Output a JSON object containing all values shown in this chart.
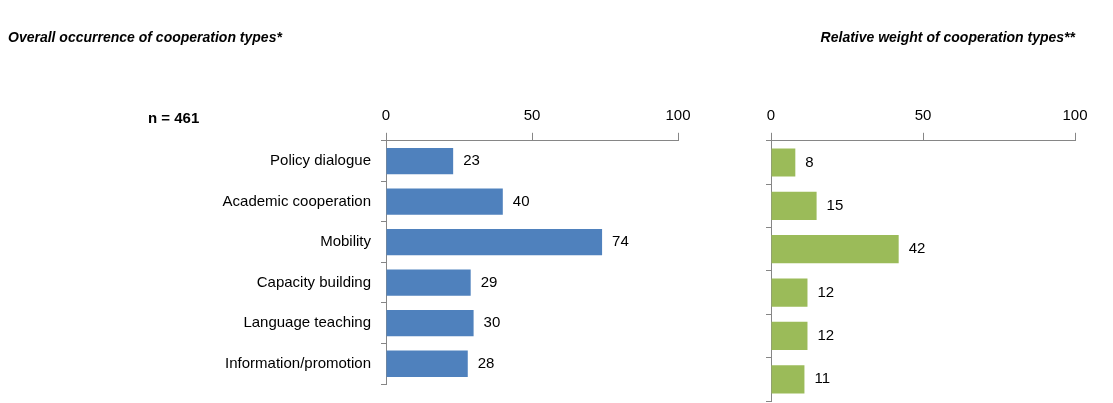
{
  "chart_data": [
    {
      "type": "bar",
      "orientation": "horizontal",
      "title": "Overall occurrence of cooperation types*",
      "annotations": [
        "n = 461"
      ],
      "categories": [
        "Policy dialogue",
        "Academic cooperation",
        "Mobility",
        "Capacity building",
        "Language teaching",
        "Information/promotion"
      ],
      "values": [
        23,
        40,
        74,
        29,
        30,
        28
      ],
      "color": "#4f81bd",
      "xlim": [
        0,
        100
      ],
      "xticks": [
        0,
        50,
        100
      ],
      "data_labels": true,
      "grid": false,
      "legend": false
    },
    {
      "type": "bar",
      "orientation": "horizontal",
      "title": "Relative weight of cooperation types**",
      "categories": [
        null,
        null,
        null,
        null,
        null,
        null
      ],
      "values": [
        8,
        15,
        42,
        12,
        12,
        11
      ],
      "color": "#9bbb59",
      "xlim": [
        0,
        100
      ],
      "xticks": [
        0,
        50,
        100
      ],
      "data_labels": true,
      "grid": false,
      "legend": false,
      "tick_labels": "x"
    }
  ]
}
